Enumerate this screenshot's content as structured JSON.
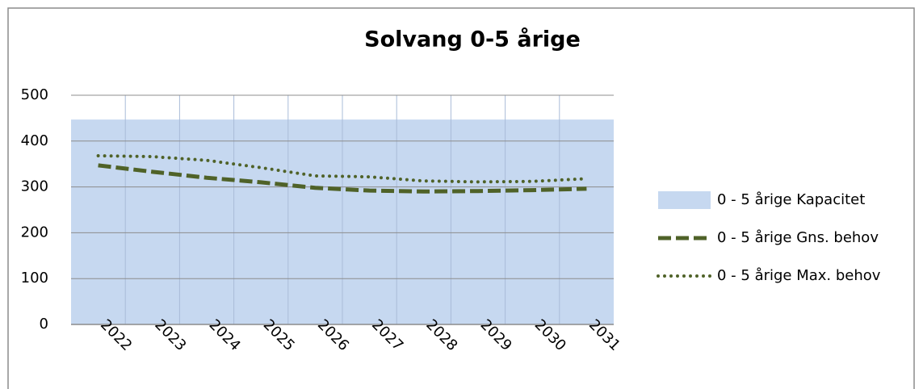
{
  "chart_data": {
    "type": "line",
    "title": "Solvang 0-5 årige",
    "categories": [
      "2022",
      "2023",
      "2024",
      "2025",
      "2026",
      "2027",
      "2028",
      "2029",
      "2030",
      "2031"
    ],
    "series": [
      {
        "name": "0 - 5 årige Kapacitet",
        "color": "#c6d8f0",
        "style": "area",
        "values": [
          447,
          447,
          447,
          447,
          447,
          447,
          447,
          447,
          447,
          447
        ]
      },
      {
        "name": "0 - 5 årige Gns. behov",
        "color": "#4f6228",
        "style": "dashed",
        "values": [
          347,
          333,
          320,
          310,
          298,
          292,
          290,
          291,
          293,
          296
        ]
      },
      {
        "name": "0 - 5 årige Max. behov",
        "color": "#4f6228",
        "style": "dotted",
        "values": [
          368,
          366,
          358,
          342,
          324,
          322,
          313,
          311,
          312,
          318
        ]
      }
    ],
    "ylim": [
      0,
      500
    ],
    "yticks": [
      0,
      100,
      200,
      300,
      400,
      500
    ],
    "grid": true,
    "legend": "right"
  }
}
